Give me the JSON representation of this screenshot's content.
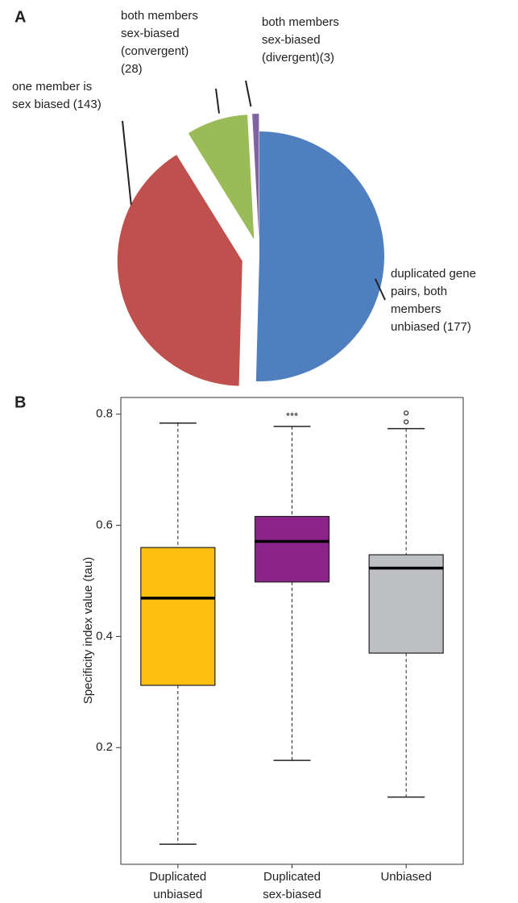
{
  "chart_data": [
    {
      "type": "pie",
      "panel": "A",
      "categories": [
        [
          "duplicated gene",
          "pairs, both",
          "members",
          "unbiased"
        ],
        [
          "one member is",
          "sex biased"
        ],
        [
          "both members",
          "sex-biased",
          "(convergent)"
        ],
        [
          "both members",
          "sex-biased",
          "(divergent)"
        ]
      ],
      "values": [
        177,
        143,
        28,
        3
      ],
      "value_labels": [
        "(177)",
        "(143)",
        "(28)",
        "(3)"
      ],
      "colors": [
        "#4f7fbf",
        "#c0504d",
        "#9bbb59",
        "#8064a2"
      ]
    },
    {
      "type": "box",
      "panel": "B",
      "y_label": "Specificity index value (tau)",
      "categories": [
        [
          "Duplicated",
          "unbiased"
        ],
        [
          "Duplicated",
          "sex-biased"
        ],
        [
          "Unbiased"
        ]
      ],
      "boxes": [
        {
          "whislo": 0.026,
          "q1": 0.312,
          "med": 0.469,
          "q3": 0.56,
          "whishi": 0.784,
          "fliers": []
        },
        {
          "whislo": 0.177,
          "q1": 0.498,
          "med": 0.571,
          "q3": 0.616,
          "whishi": 0.778,
          "fliers": []
        },
        {
          "whislo": 0.111,
          "q1": 0.37,
          "med": 0.523,
          "q3": 0.547,
          "whishi": 0.774,
          "fliers": [
            0.786,
            0.802
          ]
        }
      ],
      "colors": [
        "#fcbf10",
        "#8b238b",
        "#bebfc3"
      ],
      "annotations": [
        {
          "text": "***",
          "category": 1
        }
      ],
      "ylim": [
        -0.01,
        0.83
      ],
      "yticks": [
        0.2,
        0.4,
        0.6,
        0.8
      ]
    }
  ]
}
